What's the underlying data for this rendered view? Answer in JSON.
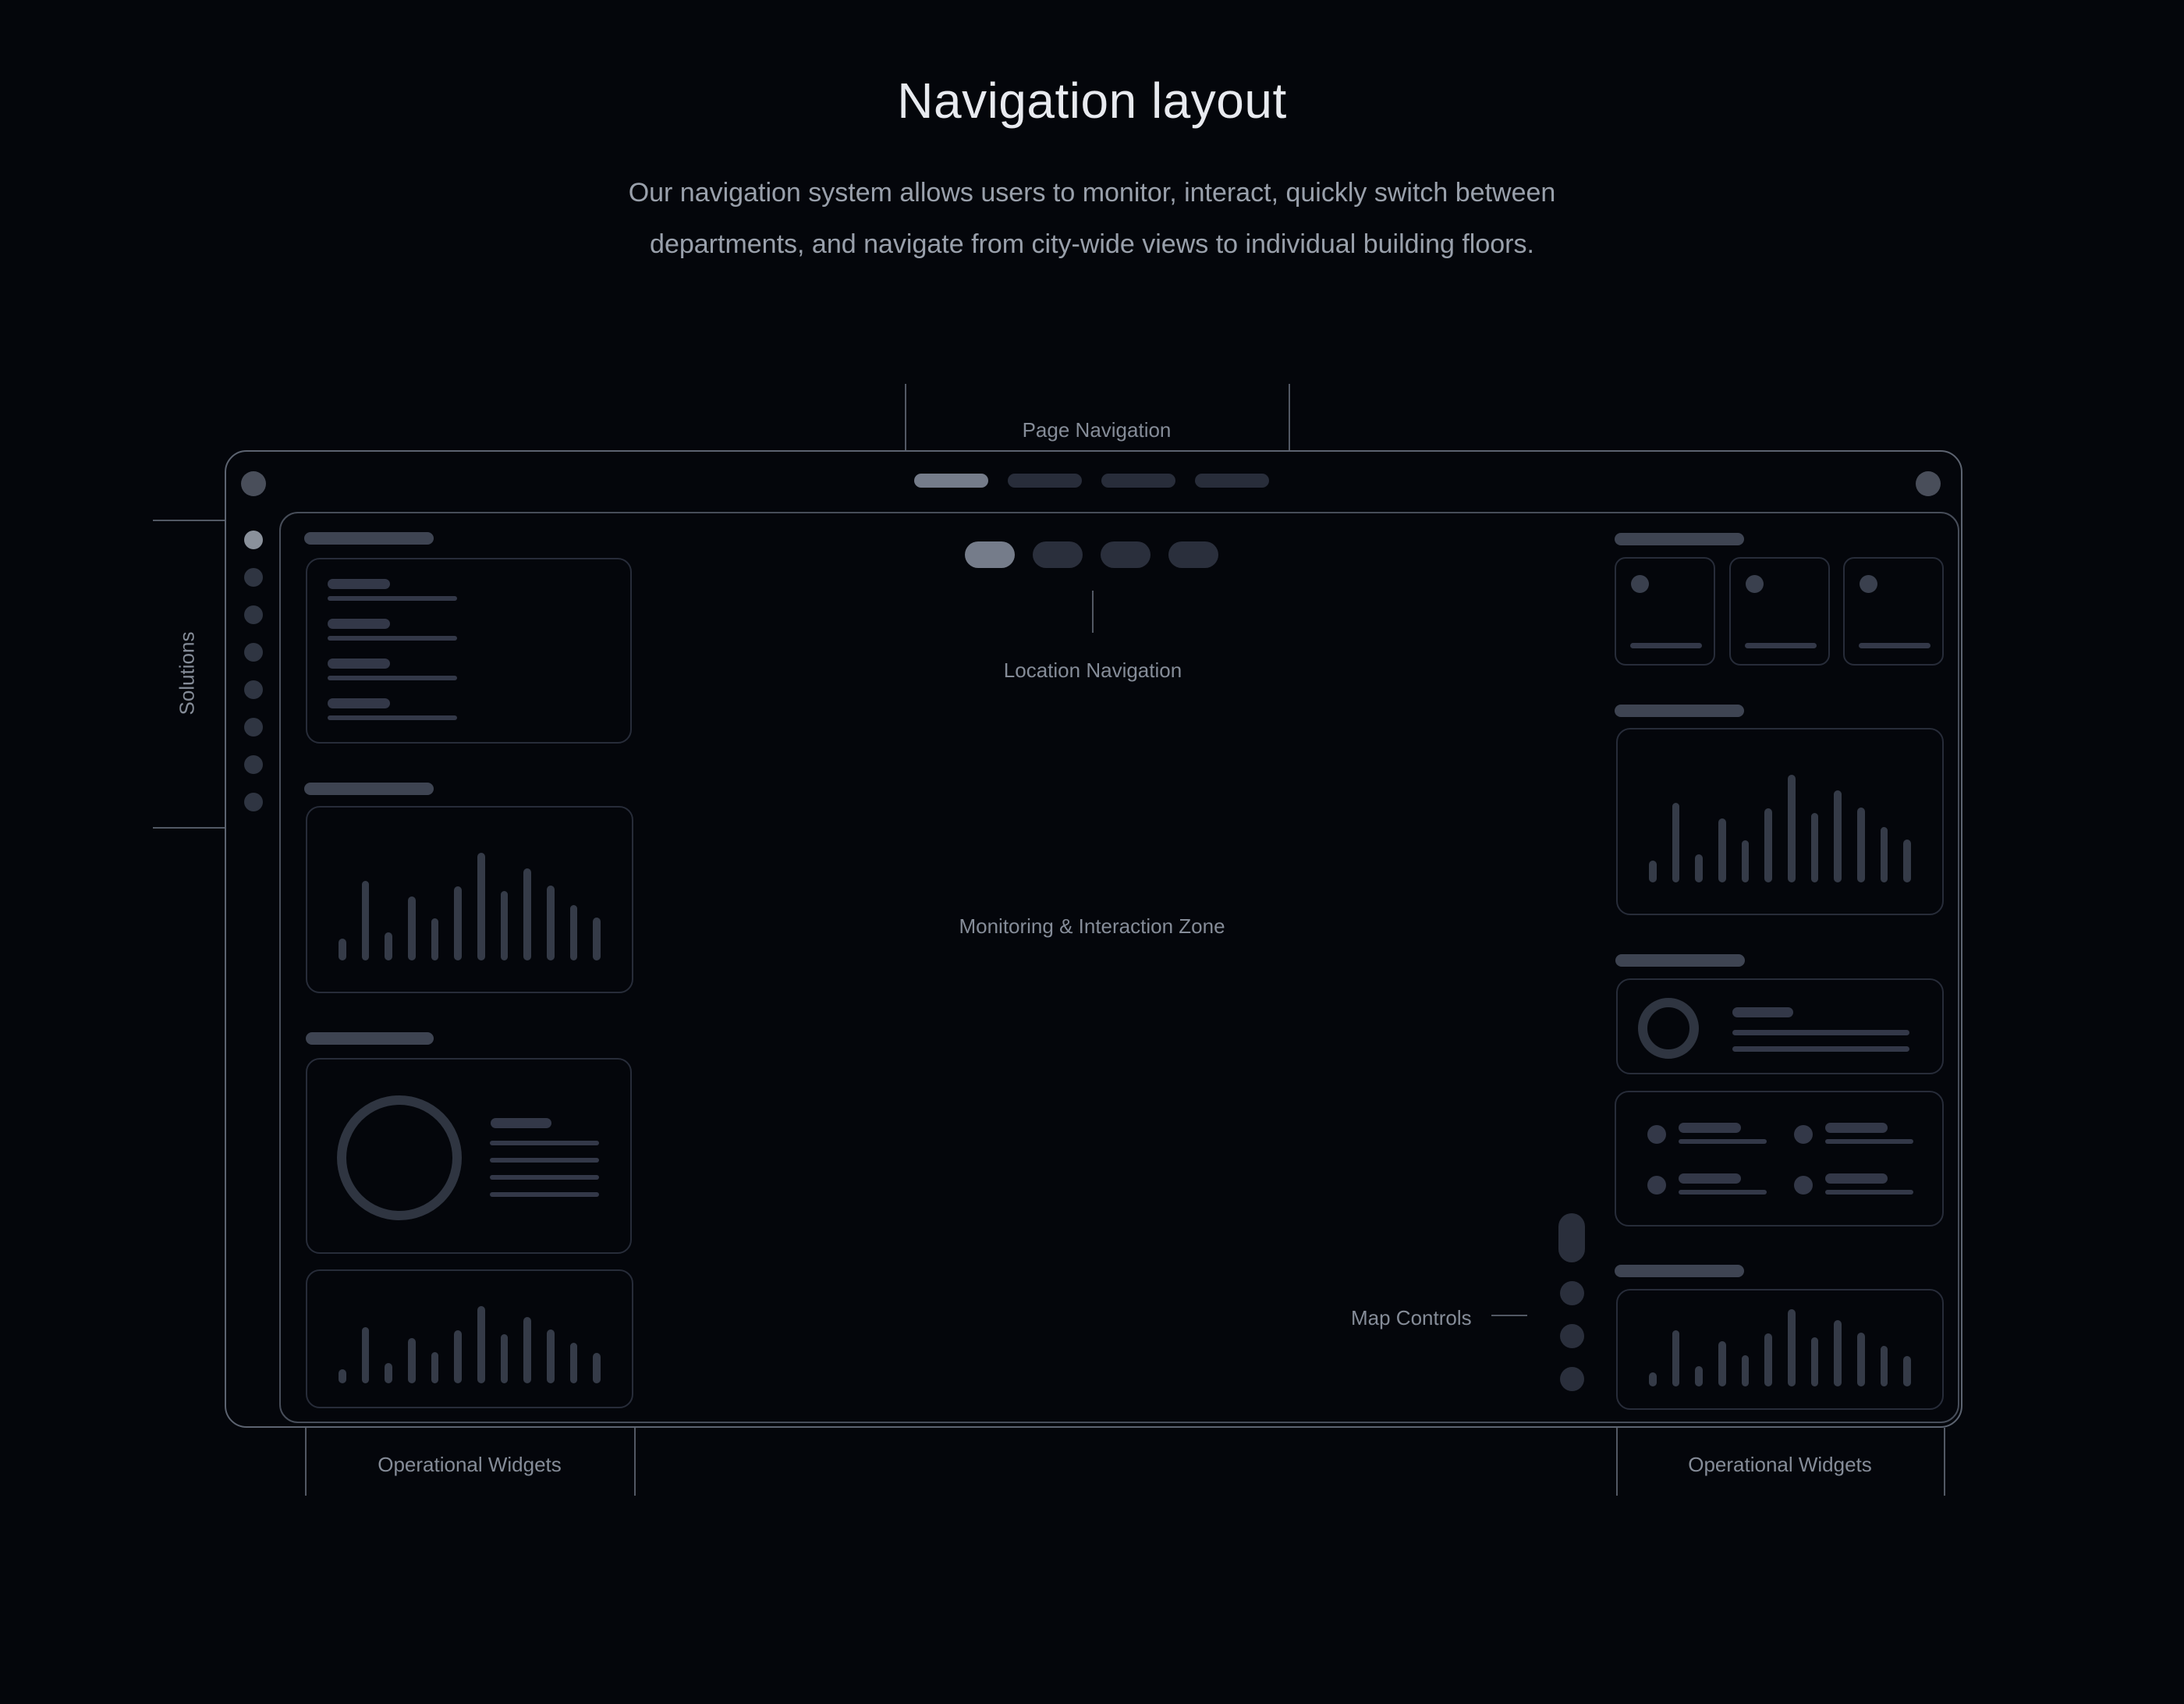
{
  "page": {
    "title": "Navigation layout",
    "subtitle_line1": "Our navigation system allows users to monitor, interact, quickly switch between",
    "subtitle_line2": "departments, and navigate from city-wide views to individual building floors."
  },
  "annotations": {
    "page_navigation": "Page Navigation",
    "solutions": "Solutions",
    "location_navigation": "Location Navigation",
    "monitoring_zone": "Monitoring & Interaction Zone",
    "map_controls": "Map Controls",
    "operational_widgets_left": "Operational Widgets",
    "operational_widgets_right": "Operational Widgets"
  },
  "wireframe": {
    "top_bar_pills": {
      "count": 4,
      "active": 0
    },
    "location_pills": {
      "count": 4,
      "active": 0
    },
    "sidebar_dots": {
      "count": 8,
      "active": 0
    },
    "map_dots": {
      "count": 3
    },
    "right_mini_cards": {
      "count": 3
    },
    "bullet_items": {
      "count": 4
    }
  },
  "chart_data": {
    "type": "bar",
    "note": "decorative wireframe bar charts, relative heights in px",
    "tall_bar_heights": [
      28,
      102,
      36,
      82,
      54,
      95,
      138,
      89,
      118,
      96,
      71,
      55
    ],
    "short_bar_heights": [
      18,
      72,
      26,
      58,
      40,
      68,
      99,
      63,
      85,
      69,
      52,
      39
    ]
  },
  "palette": {
    "background": "#04060b",
    "title_text": "#e8eaef",
    "subtitle_text": "#99a0ab",
    "annotation_text": "#858c98",
    "frame_border": "#5c6370",
    "bracket_line": "#525864",
    "card_border": "#272c39",
    "label_pill": "#3e4452",
    "shape_fill": "#343a47",
    "active_fill": "#757c8a",
    "inactive_fill": "#282d3a",
    "active_dot": "#8a919b"
  }
}
